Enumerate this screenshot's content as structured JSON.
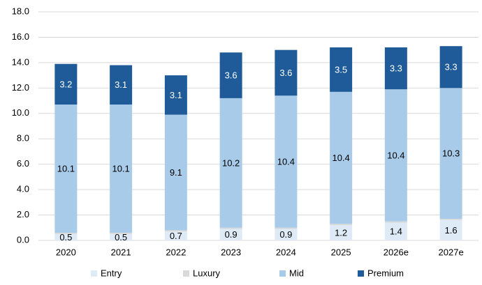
{
  "chart_data": {
    "type": "stacked_bar",
    "categories": [
      "2020",
      "2021",
      "2022",
      "2023",
      "2024",
      "2025",
      "2026e",
      "2027e"
    ],
    "series": [
      {
        "name": "Entry",
        "color": "#deebf7",
        "values": [
          0.5,
          0.5,
          0.7,
          0.9,
          0.9,
          1.2,
          1.4,
          1.6
        ],
        "show_labels": true,
        "label_color": "#000000"
      },
      {
        "name": "Luxury",
        "color": "#d9d9d9",
        "values": [
          0.1,
          0.1,
          0.1,
          0.1,
          0.1,
          0.1,
          0.1,
          0.1
        ],
        "show_labels": false,
        "label_color": "#000000"
      },
      {
        "name": "Mid",
        "color": "#a9cbea",
        "values": [
          10.1,
          10.1,
          9.1,
          10.2,
          10.4,
          10.4,
          10.4,
          10.3
        ],
        "show_labels": true,
        "label_color": "#000000"
      },
      {
        "name": "Premium",
        "color": "#1f5b98",
        "values": [
          3.2,
          3.1,
          3.1,
          3.6,
          3.6,
          3.5,
          3.3,
          3.3
        ],
        "show_labels": true,
        "label_color": "#ffffff"
      }
    ],
    "ylim": [
      0,
      18
    ],
    "yticks": [
      {
        "value": 0,
        "label": "0.0"
      },
      {
        "value": 2,
        "label": "2.0"
      },
      {
        "value": 4,
        "label": "4.0"
      },
      {
        "value": 6,
        "label": "6.0"
      },
      {
        "value": 8,
        "label": "8.0"
      },
      {
        "value": 10,
        "label": "10.0"
      },
      {
        "value": 12,
        "label": "12.0"
      },
      {
        "value": 14,
        "label": "14.0"
      },
      {
        "value": 16,
        "label": "16.0"
      },
      {
        "value": 18,
        "label": "18.0"
      }
    ],
    "grid": true,
    "legend": "bottom"
  }
}
